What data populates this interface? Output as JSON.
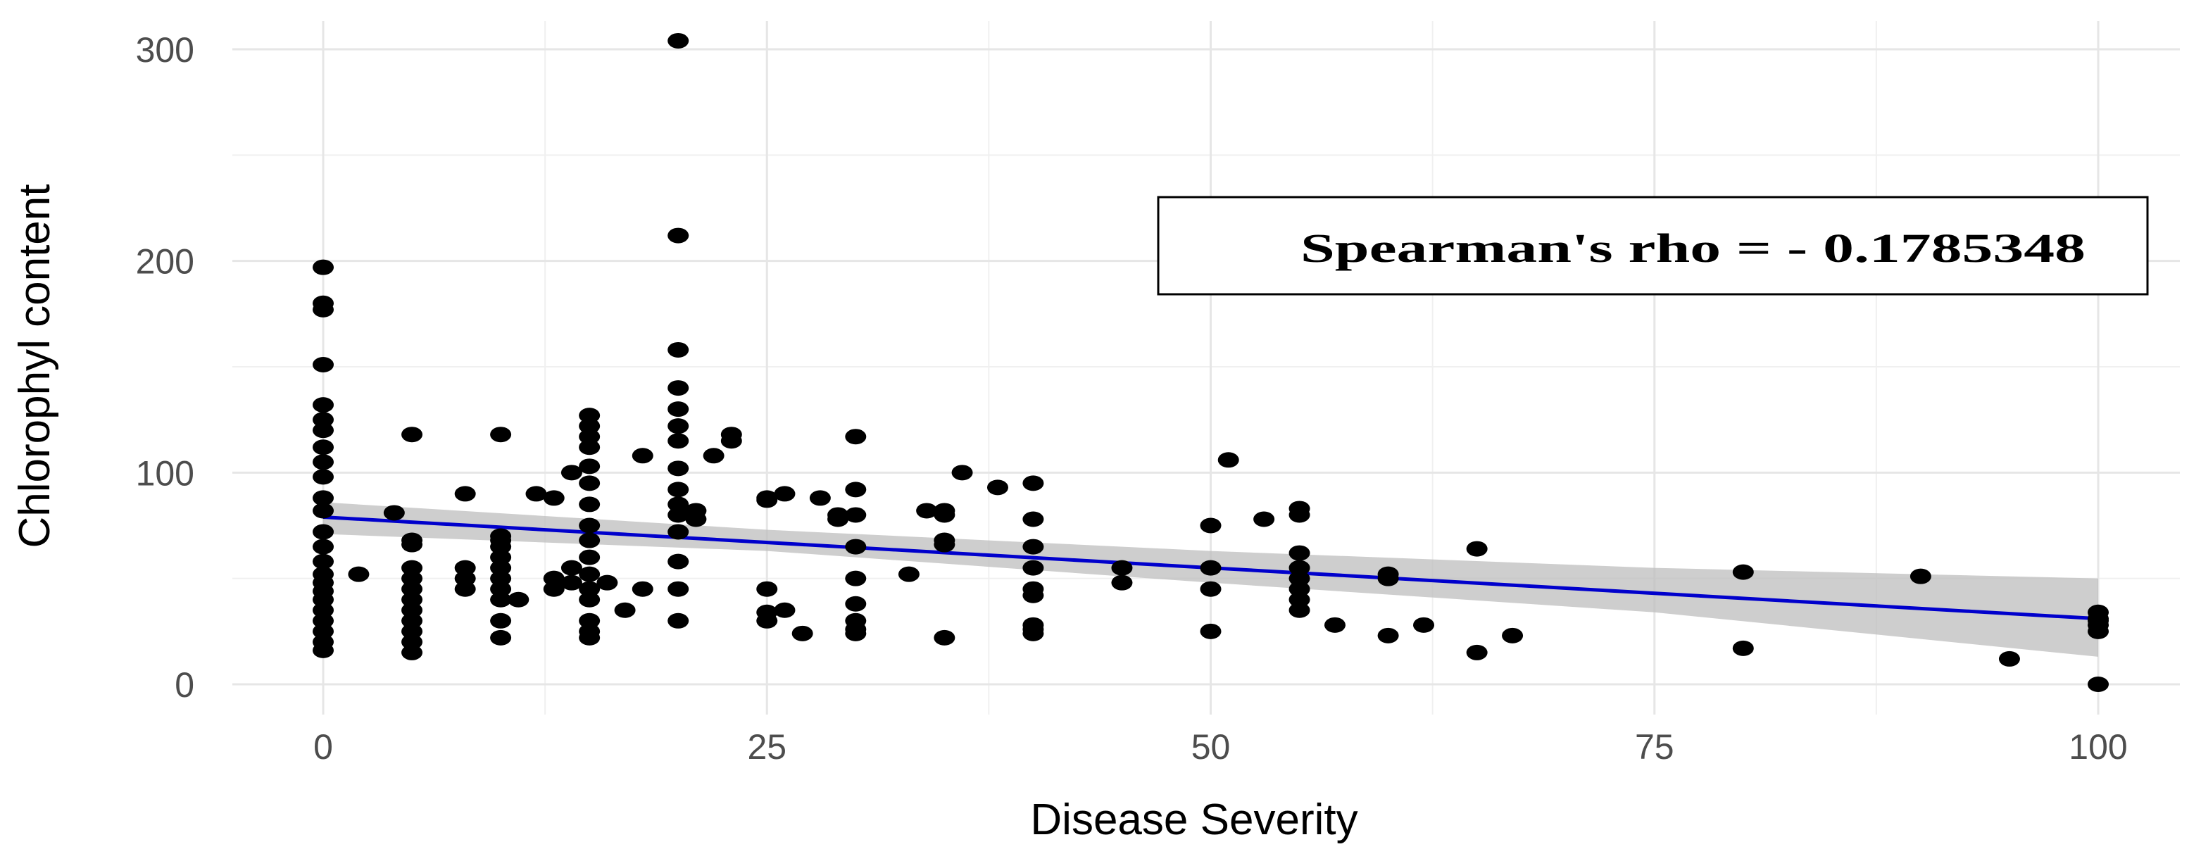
{
  "chart_data": {
    "type": "scatter",
    "title": "",
    "xlabel": "Disease Severity",
    "ylabel": "Chlorophyl content",
    "xlim": [
      -5,
      102
    ],
    "ylim": [
      -15,
      310
    ],
    "xticks": [
      0,
      25,
      50,
      75,
      100
    ],
    "yticks": [
      0,
      100,
      200,
      300
    ],
    "xtick_labels": [
      "0",
      "25",
      "50",
      "75",
      "100"
    ],
    "ytick_labels": [
      "0",
      "100",
      "200",
      "300"
    ],
    "grid": true,
    "point_color": "#000000",
    "line_color": "#0000cc",
    "band_color": "#bdbdbd",
    "annotation": "Spearman's rho = - 0.1785348",
    "points": [
      [
        0,
        197
      ],
      [
        0,
        180
      ],
      [
        0,
        177
      ],
      [
        0,
        151
      ],
      [
        0,
        132
      ],
      [
        0,
        125
      ],
      [
        0,
        120
      ],
      [
        0,
        112
      ],
      [
        0,
        105
      ],
      [
        0,
        98
      ],
      [
        0,
        88
      ],
      [
        0,
        82
      ],
      [
        0,
        72
      ],
      [
        0,
        65
      ],
      [
        0,
        58
      ],
      [
        0,
        52
      ],
      [
        0,
        48
      ],
      [
        0,
        44
      ],
      [
        0,
        40
      ],
      [
        0,
        35
      ],
      [
        0,
        30
      ],
      [
        0,
        25
      ],
      [
        0,
        20
      ],
      [
        0,
        16
      ],
      [
        2,
        52
      ],
      [
        4,
        81
      ],
      [
        5,
        118
      ],
      [
        5,
        68
      ],
      [
        5,
        66
      ],
      [
        5,
        55
      ],
      [
        5,
        50
      ],
      [
        5,
        45
      ],
      [
        5,
        40
      ],
      [
        5,
        35
      ],
      [
        5,
        30
      ],
      [
        5,
        25
      ],
      [
        5,
        20
      ],
      [
        5,
        15
      ],
      [
        8,
        90
      ],
      [
        8,
        55
      ],
      [
        8,
        50
      ],
      [
        8,
        45
      ],
      [
        10,
        118
      ],
      [
        10,
        70
      ],
      [
        10,
        68
      ],
      [
        10,
        65
      ],
      [
        10,
        60
      ],
      [
        10,
        55
      ],
      [
        10,
        50
      ],
      [
        10,
        45
      ],
      [
        10,
        40
      ],
      [
        10,
        30
      ],
      [
        10,
        22
      ],
      [
        11,
        40
      ],
      [
        12,
        90
      ],
      [
        13,
        88
      ],
      [
        13,
        50
      ],
      [
        13,
        45
      ],
      [
        14,
        100
      ],
      [
        14,
        55
      ],
      [
        14,
        48
      ],
      [
        15,
        127
      ],
      [
        15,
        122
      ],
      [
        15,
        117
      ],
      [
        15,
        112
      ],
      [
        15,
        103
      ],
      [
        15,
        95
      ],
      [
        15,
        85
      ],
      [
        15,
        75
      ],
      [
        15,
        68
      ],
      [
        15,
        60
      ],
      [
        15,
        52
      ],
      [
        15,
        45
      ],
      [
        15,
        40
      ],
      [
        15,
        30
      ],
      [
        15,
        25
      ],
      [
        15,
        22
      ],
      [
        16,
        48
      ],
      [
        17,
        35
      ],
      [
        18,
        108
      ],
      [
        18,
        45
      ],
      [
        20,
        304
      ],
      [
        20,
        212
      ],
      [
        20,
        158
      ],
      [
        20,
        140
      ],
      [
        20,
        130
      ],
      [
        20,
        122
      ],
      [
        20,
        115
      ],
      [
        20,
        102
      ],
      [
        20,
        92
      ],
      [
        20,
        85
      ],
      [
        20,
        80
      ],
      [
        20,
        72
      ],
      [
        20,
        58
      ],
      [
        20,
        45
      ],
      [
        20,
        30
      ],
      [
        21,
        82
      ],
      [
        21,
        78
      ],
      [
        22,
        108
      ],
      [
        23,
        118
      ],
      [
        23,
        115
      ],
      [
        25,
        88
      ],
      [
        25,
        87
      ],
      [
        25,
        45
      ],
      [
        25,
        34
      ],
      [
        25,
        30
      ],
      [
        26,
        90
      ],
      [
        26,
        35
      ],
      [
        27,
        24
      ],
      [
        28,
        88
      ],
      [
        29,
        80
      ],
      [
        29,
        78
      ],
      [
        30,
        117
      ],
      [
        30,
        92
      ],
      [
        30,
        80
      ],
      [
        30,
        65
      ],
      [
        30,
        50
      ],
      [
        30,
        38
      ],
      [
        30,
        30
      ],
      [
        30,
        26
      ],
      [
        30,
        24
      ],
      [
        33,
        52
      ],
      [
        34,
        82
      ],
      [
        35,
        82
      ],
      [
        35,
        80
      ],
      [
        35,
        68
      ],
      [
        35,
        66
      ],
      [
        35,
        22
      ],
      [
        36,
        100
      ],
      [
        38,
        93
      ],
      [
        40,
        95
      ],
      [
        40,
        78
      ],
      [
        40,
        65
      ],
      [
        40,
        55
      ],
      [
        40,
        45
      ],
      [
        40,
        42
      ],
      [
        40,
        28
      ],
      [
        40,
        26
      ],
      [
        40,
        24
      ],
      [
        45,
        55
      ],
      [
        45,
        48
      ],
      [
        50,
        75
      ],
      [
        50,
        55
      ],
      [
        50,
        45
      ],
      [
        50,
        25
      ],
      [
        51,
        106
      ],
      [
        53,
        78
      ],
      [
        55,
        83
      ],
      [
        55,
        80
      ],
      [
        55,
        62
      ],
      [
        55,
        55
      ],
      [
        55,
        50
      ],
      [
        55,
        45
      ],
      [
        55,
        40
      ],
      [
        55,
        35
      ],
      [
        57,
        28
      ],
      [
        60,
        52
      ],
      [
        60,
        50
      ],
      [
        60,
        23
      ],
      [
        62,
        28
      ],
      [
        65,
        64
      ],
      [
        65,
        15
      ],
      [
        67,
        23
      ],
      [
        80,
        53
      ],
      [
        80,
        17
      ],
      [
        90,
        51
      ],
      [
        95,
        12
      ],
      [
        100,
        34
      ],
      [
        100,
        31
      ],
      [
        100,
        30
      ],
      [
        100,
        28
      ],
      [
        100,
        25
      ],
      [
        100,
        0
      ]
    ],
    "trend_line": {
      "x": [
        0,
        100
      ],
      "y": [
        79,
        31
      ]
    },
    "confidence_band": {
      "x": [
        0,
        25,
        50,
        75,
        100
      ],
      "lower": [
        71,
        63,
        48,
        34,
        13
      ],
      "upper": [
        86,
        73,
        63,
        55,
        50
      ]
    }
  }
}
